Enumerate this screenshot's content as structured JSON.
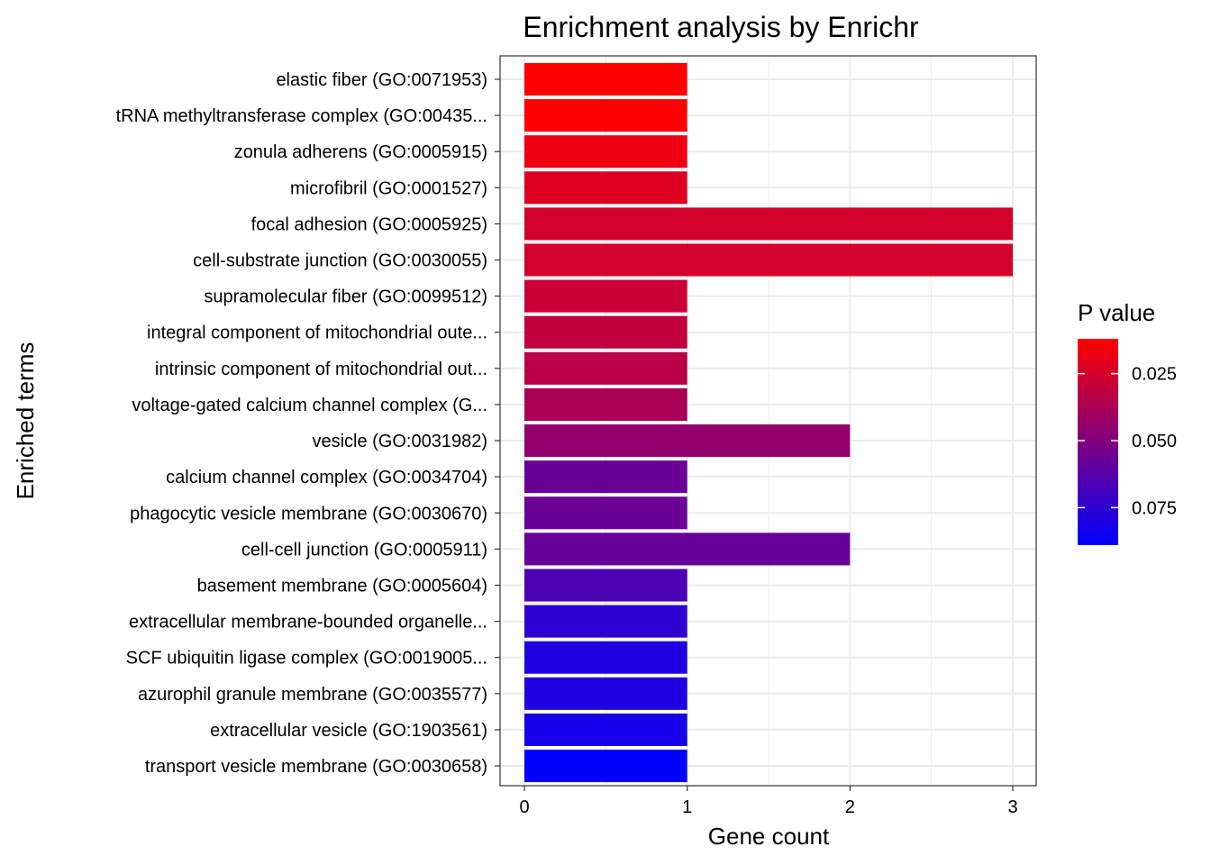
{
  "chart_data": {
    "type": "bar",
    "orientation": "horizontal",
    "title": "Enrichment analysis by Enrichr",
    "xlabel": "Gene count",
    "ylabel": "Enriched terms",
    "xlim": [
      0,
      3
    ],
    "x_ticks": [
      "0",
      "1",
      "2",
      "3"
    ],
    "grid": true,
    "legend": {
      "title": "P value",
      "placement": "right",
      "type": "colorbar",
      "low_color": "#FF0000",
      "high_color": "#0000FF",
      "range": [
        0.012,
        0.089
      ],
      "tick_values": [
        0.025,
        0.05,
        0.075
      ],
      "tick_labels": [
        "0.025",
        "0.050",
        "0.075"
      ]
    },
    "categories": [
      "elastic fiber (GO:0071953)",
      "tRNA methyltransferase complex (GO:00435...",
      "zonula adherens (GO:0005915)",
      "microfibril (GO:0001527)",
      "focal adhesion (GO:0005925)",
      "cell-substrate junction (GO:0030055)",
      "supramolecular fiber (GO:0099512)",
      "integral component of mitochondrial oute...",
      "intrinsic component of mitochondrial out...",
      "voltage-gated calcium channel complex (G...",
      "vesicle (GO:0031982)",
      "calcium channel complex (GO:0034704)",
      "phagocytic vesicle membrane (GO:0030670)",
      "cell-cell junction (GO:0005911)",
      "basement membrane (GO:0005604)",
      "extracellular membrane-bounded organelle...",
      "SCF ubiquitin ligase complex (GO:0019005...",
      "azurophil granule membrane (GO:0035577)",
      "extracellular vesicle (GO:1903561)",
      "transport vesicle membrane (GO:0030658)"
    ],
    "values": [
      1,
      1,
      1,
      1,
      3,
      3,
      1,
      1,
      1,
      1,
      2,
      1,
      1,
      2,
      1,
      1,
      1,
      1,
      1,
      1
    ],
    "p_values": [
      0.012,
      0.012,
      0.017,
      0.022,
      0.025,
      0.025,
      0.028,
      0.031,
      0.033,
      0.038,
      0.045,
      0.057,
      0.057,
      0.058,
      0.066,
      0.075,
      0.08,
      0.08,
      0.082,
      0.089
    ]
  }
}
